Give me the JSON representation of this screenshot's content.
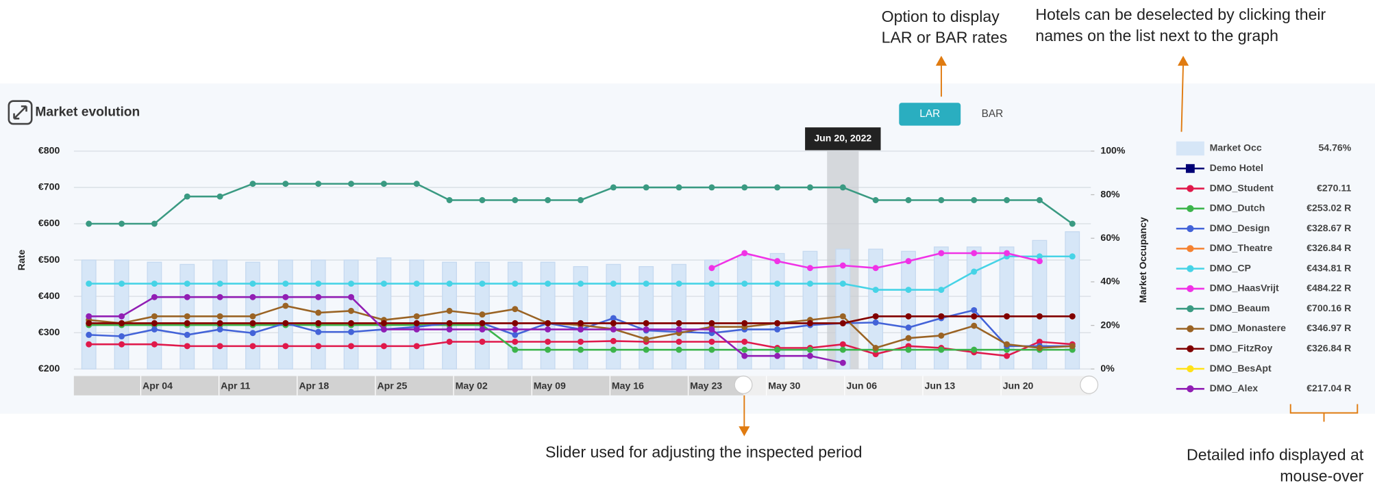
{
  "header": {
    "title": "Market evolution",
    "buttons": [
      "LAR",
      "BAR"
    ]
  },
  "annotations": {
    "rate_toggle": [
      "Option to display",
      "LAR or BAR rates"
    ],
    "deselect": [
      "Hotels can be deselected by clicking their",
      "names on the list next to the graph"
    ],
    "slider": [
      "Slider used for adjusting the inspected period"
    ],
    "mouse_over": [
      "Detailed info displayed at",
      "mouse-over"
    ]
  },
  "navigator": {
    "labels": [
      "Apr 04",
      "Apr 11",
      "Apr 18",
      "Apr 25",
      "May 02",
      "May 09",
      "May 16",
      "May 23",
      "May 30",
      "Jun 06",
      "Jun 13",
      "Jun 20"
    ]
  },
  "tooltip": "Jun 20, 2022",
  "chart_data": {
    "type": "line",
    "y_label": "Rate",
    "y2_label": "Market Occupancy",
    "categories": [
      null,
      null,
      null,
      null,
      null,
      null,
      null,
      null,
      null,
      null,
      null,
      null,
      null,
      null,
      null,
      null,
      null,
      null,
      null,
      null,
      null,
      null,
      null,
      null,
      null,
      null,
      null,
      null,
      null,
      null,
      null
    ],
    "ylim": [
      200,
      800
    ],
    "yticks": [
      {
        "value": 200,
        "label": "€200"
      },
      {
        "value": 300,
        "label": "€300"
      },
      {
        "value": 400,
        "label": "€400"
      },
      {
        "value": 500,
        "label": "€500"
      },
      {
        "value": 600,
        "label": "€600"
      },
      {
        "value": 700,
        "label": "€700"
      },
      {
        "value": 800,
        "label": "€800"
      }
    ],
    "y2lim": [
      0,
      100
    ],
    "y2ticks": [
      {
        "value": 0,
        "label": "0%"
      },
      {
        "value": 20,
        "label": "20%"
      },
      {
        "value": 40,
        "label": "40%"
      },
      {
        "value": 60,
        "label": "60%"
      },
      {
        "value": 80,
        "label": "80%"
      },
      {
        "value": 100,
        "label": "100%"
      }
    ],
    "grid": true,
    "series": [
      {
        "name": "Market Occ",
        "type": "bar",
        "axis": "y2",
        "color": "#d6e6f7",
        "info": "54.76%",
        "values": [
          50,
          50,
          49,
          48,
          50,
          49,
          50,
          50,
          50,
          51,
          50,
          49,
          49,
          49,
          49,
          47,
          48,
          47,
          48,
          50,
          52,
          53,
          54,
          55,
          55,
          54,
          56,
          56,
          56,
          59,
          63
        ]
      },
      {
        "name": "Demo Hotel",
        "color": "#000075",
        "values": [
          null,
          null,
          null,
          null,
          null,
          null,
          null,
          null,
          null,
          null,
          null,
          null,
          null,
          null,
          null,
          null,
          null,
          null,
          null,
          null,
          null,
          null,
          null,
          null,
          null,
          null,
          null,
          null,
          null,
          null,
          null
        ]
      },
      {
        "name": "DMO_Student",
        "color": "#e0194b",
        "info": "€270.11",
        "values": [
          268,
          268,
          268,
          263,
          263,
          263,
          263,
          263,
          263,
          263,
          263,
          275,
          275,
          275,
          275,
          275,
          277,
          275,
          275,
          275,
          275,
          258,
          258,
          268,
          241,
          263,
          258,
          246,
          236,
          275,
          268
        ]
      },
      {
        "name": "DMO_Dutch",
        "color": "#3cb44b",
        "info": "€253.02 R",
        "values": [
          321,
          321,
          321,
          321,
          321,
          321,
          321,
          321,
          321,
          321,
          321,
          321,
          321,
          253,
          253,
          253,
          253,
          253,
          253,
          253,
          253,
          253,
          253,
          253,
          253,
          253,
          253,
          253,
          253,
          253,
          253
        ]
      },
      {
        "name": "DMO_Design",
        "color": "#4363d8",
        "info": "€328.67 R",
        "values": [
          294,
          290,
          309,
          294,
          309,
          299,
          326,
          302,
          302,
          309,
          316,
          326,
          326,
          294,
          326,
          309,
          340,
          306,
          302,
          299,
          309,
          309,
          321,
          326,
          328,
          314,
          340,
          362,
          263,
          263,
          263
        ]
      },
      {
        "name": "DMO_Theatre",
        "color": "#f58231",
        "info": "€326.84 R",
        "values": [
          326,
          326,
          326,
          326,
          326,
          326,
          326,
          326,
          326,
          326,
          326,
          326,
          326,
          326,
          326,
          326,
          326,
          326,
          326,
          326,
          326,
          326,
          326,
          326,
          345,
          345,
          345,
          345,
          345,
          345,
          345
        ]
      },
      {
        "name": "DMO_CP",
        "color": "#46d3e6",
        "info": "€434.81 R",
        "values": [
          435,
          435,
          435,
          435,
          435,
          435,
          435,
          435,
          435,
          435,
          435,
          435,
          435,
          435,
          435,
          435,
          435,
          435,
          435,
          435,
          435,
          435,
          435,
          435,
          418,
          418,
          418,
          468,
          510,
          510,
          510
        ]
      },
      {
        "name": "DMO_HaasVrijt",
        "color": "#f032e6",
        "info": "€484.22 R",
        "values": [
          null,
          null,
          null,
          null,
          null,
          null,
          null,
          null,
          null,
          null,
          null,
          null,
          null,
          null,
          null,
          null,
          null,
          null,
          null,
          478,
          519,
          497,
          478,
          485,
          478,
          497,
          519,
          519,
          519,
          497,
          null
        ]
      },
      {
        "name": "DMO_Beaum",
        "color": "#3a9a82",
        "info": "€700.16 R",
        "values": [
          600,
          600,
          600,
          675,
          675,
          710,
          710,
          710,
          710,
          710,
          710,
          665,
          665,
          665,
          665,
          665,
          700,
          700,
          700,
          700,
          700,
          700,
          700,
          700,
          665,
          665,
          665,
          665,
          665,
          665,
          600
        ]
      },
      {
        "name": "DMO_Monastere",
        "color": "#9a6324",
        "info": "€346.97 R",
        "values": [
          335,
          326,
          345,
          345,
          345,
          345,
          374,
          355,
          360,
          335,
          345,
          360,
          350,
          365,
          326,
          321,
          310,
          282,
          299,
          316,
          316,
          326,
          335,
          345,
          258,
          285,
          292,
          319,
          268,
          258,
          263
        ]
      },
      {
        "name": "DMO_FitzRoy",
        "color": "#800000",
        "info": "€326.84 R",
        "values": [
          326,
          326,
          326,
          326,
          326,
          326,
          326,
          326,
          326,
          326,
          326,
          326,
          326,
          326,
          326,
          326,
          326,
          326,
          326,
          326,
          326,
          326,
          326,
          326,
          345,
          345,
          345,
          345,
          345,
          345,
          345
        ]
      },
      {
        "name": "DMO_BesApt",
        "color": "#ffe119",
        "values": [
          null,
          null,
          null,
          null,
          null,
          null,
          null,
          null,
          null,
          null,
          null,
          null,
          null,
          null,
          null,
          null,
          null,
          null,
          null,
          null,
          null,
          null,
          null,
          null,
          null,
          null,
          null,
          null,
          null,
          null,
          null
        ]
      },
      {
        "name": "DMO_Alex",
        "color": "#911eb4",
        "info": "€217.04 R",
        "values": [
          345,
          345,
          398,
          398,
          398,
          398,
          398,
          398,
          398,
          309,
          309,
          309,
          309,
          309,
          309,
          309,
          309,
          309,
          309,
          309,
          236,
          236,
          236,
          217,
          null,
          null,
          null,
          null,
          null,
          null,
          null
        ]
      }
    ]
  }
}
